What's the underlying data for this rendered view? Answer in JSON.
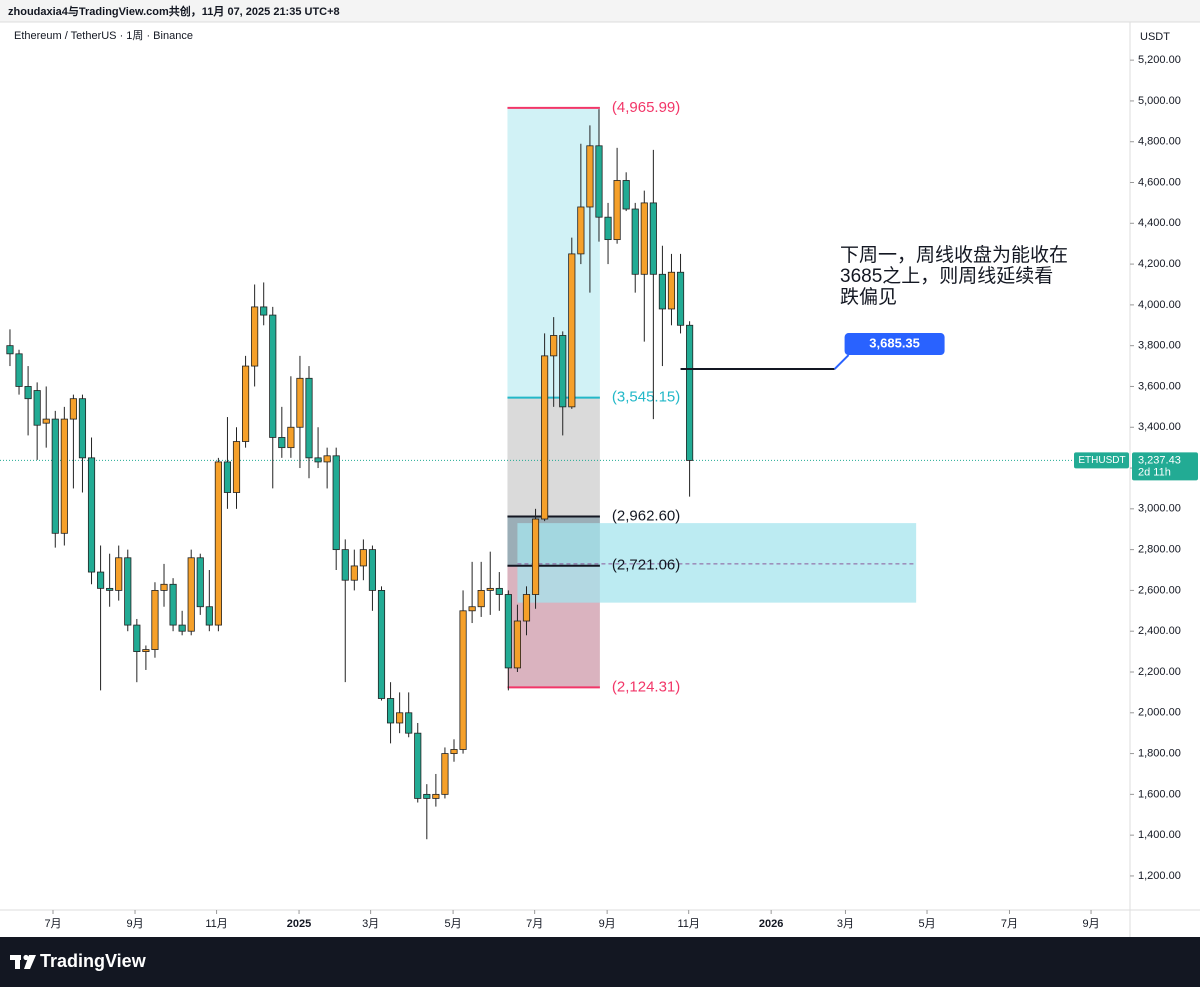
{
  "header": "zhoudaxia4与TradingView.com共创，11月 07, 2025 21:35 UTC+8",
  "footer": "TradingView",
  "chart_data": {
    "type": "candlestick",
    "title": "Ethereum / TetherUS · 1周 · Binance",
    "y_axis_label": "USDT",
    "up_color": "#f5a02a",
    "down_color": "#22ab94",
    "grid": false,
    "x": [
      0,
      1,
      2,
      3,
      4,
      5,
      6,
      7,
      8,
      9,
      10,
      11,
      12,
      13,
      14,
      15,
      16,
      17,
      18,
      19,
      20,
      21,
      22,
      23,
      24,
      25,
      26,
      27,
      28,
      29,
      30,
      31,
      32,
      33,
      34,
      35,
      36,
      37,
      38,
      39,
      40,
      41,
      42,
      43,
      44,
      45,
      46,
      47,
      48,
      49,
      50,
      51,
      52,
      53,
      54,
      55,
      56,
      57,
      58,
      59,
      60,
      61,
      62,
      63,
      64,
      65,
      66,
      67,
      68,
      69,
      70,
      71,
      72,
      73,
      74,
      75
    ],
    "open": [
      3800,
      3760,
      3600,
      3580,
      3420,
      3440,
      2880,
      3440,
      3540,
      3250,
      2690,
      2610,
      2600,
      2760,
      2430,
      2300,
      2310,
      2600,
      2630,
      2430,
      2400,
      2760,
      2520,
      2430,
      3230,
      3080,
      3330,
      3700,
      3990,
      3950,
      3350,
      3300,
      3400,
      3640,
      3250,
      3230,
      3260,
      2800,
      2650,
      2720,
      2800,
      2600,
      2070,
      1950,
      2000,
      1900,
      1600,
      1580,
      1600,
      1800,
      1820,
      2500,
      2520,
      2600,
      2610,
      2580,
      2220,
      2450,
      2580,
      2950,
      3750,
      3850,
      3500,
      4250,
      4480,
      4780,
      4430,
      4320,
      4610,
      4470,
      4150,
      4500,
      4150,
      3980,
      4160,
      3900
    ],
    "high": [
      3880,
      3780,
      3700,
      3620,
      3600,
      3480,
      3500,
      3560,
      3560,
      3350,
      2820,
      2780,
      2820,
      2800,
      2460,
      2330,
      2640,
      2730,
      2660,
      2500,
      2800,
      2780,
      2700,
      3250,
      3450,
      3400,
      3750,
      4100,
      4110,
      3990,
      3500,
      3650,
      3750,
      3700,
      3400,
      3300,
      3300,
      2850,
      2800,
      2850,
      2820,
      2620,
      2150,
      2100,
      2100,
      1950,
      1650,
      1700,
      1830,
      1870,
      2600,
      2740,
      2740,
      2790,
      2690,
      2600,
      2530,
      2620,
      3000,
      3860,
      3940,
      3870,
      4330,
      4790,
      4880,
      4960,
      4500,
      4770,
      4650,
      4500,
      4560,
      4760,
      4290,
      4250,
      4250,
      3920
    ],
    "low": [
      3700,
      3560,
      3360,
      3240,
      3300,
      2810,
      2820,
      3100,
      3080,
      2630,
      2110,
      2520,
      2550,
      2400,
      2150,
      2210,
      2270,
      2520,
      2400,
      2380,
      2380,
      2480,
      2400,
      2400,
      3000,
      3000,
      3300,
      3600,
      3900,
      3100,
      3250,
      3250,
      3200,
      3150,
      3200,
      3100,
      2700,
      2150,
      2600,
      2650,
      2500,
      2060,
      1850,
      1900,
      1880,
      1560,
      1380,
      1540,
      1580,
      1760,
      1800,
      2440,
      2470,
      2480,
      2500,
      2110,
      2200,
      2380,
      2510,
      2940,
      3500,
      3360,
      3490,
      4200,
      4060,
      4310,
      4200,
      4300,
      4460,
      4060,
      3820,
      3440,
      3700,
      3900,
      3860,
      3060
    ],
    "close": [
      3760,
      3600,
      3540,
      3410,
      3440,
      2880,
      3440,
      3540,
      3250,
      2690,
      2610,
      2600,
      2760,
      2430,
      2300,
      2310,
      2600,
      2630,
      2430,
      2400,
      2760,
      2520,
      2430,
      3230,
      3080,
      3330,
      3700,
      3990,
      3950,
      3350,
      3300,
      3400,
      3640,
      3250,
      3230,
      3260,
      2800,
      2650,
      2720,
      2800,
      2600,
      2070,
      1950,
      2000,
      1900,
      1580,
      1580,
      1600,
      1800,
      1820,
      2500,
      2520,
      2600,
      2610,
      2580,
      2220,
      2450,
      2580,
      2950,
      3750,
      3850,
      3500,
      4250,
      4480,
      4780,
      4430,
      4320,
      4610,
      4470,
      4150,
      4500,
      4150,
      3980,
      4160,
      3900,
      3237.43
    ],
    "xlim": [
      -1.1,
      123.6
    ],
    "xticks": [
      {
        "value": 4.75,
        "label": "7月"
      },
      {
        "value": 13.8,
        "label": "9月"
      },
      {
        "value": 22.8,
        "label": "11月"
      },
      {
        "value": 31.9,
        "label": "2025"
      },
      {
        "value": 39.8,
        "label": "3月"
      },
      {
        "value": 48.9,
        "label": "5月"
      },
      {
        "value": 57.9,
        "label": "7月"
      },
      {
        "value": 65.9,
        "label": "9月"
      },
      {
        "value": 74.9,
        "label": "11月"
      },
      {
        "value": 84,
        "label": "2026"
      },
      {
        "value": 92.2,
        "label": "3月"
      },
      {
        "value": 101.2,
        "label": "5月"
      },
      {
        "value": 110.3,
        "label": "7月"
      },
      {
        "value": 119.3,
        "label": "9月"
      }
    ],
    "ylim": [
      1033,
      5387
    ],
    "yticks": [
      {
        "value": 1200,
        "label": "1,200.00"
      },
      {
        "value": 1400,
        "label": "1,400.00"
      },
      {
        "value": 1600,
        "label": "1,600.00"
      },
      {
        "value": 1800,
        "label": "1,800.00"
      },
      {
        "value": 2000,
        "label": "2,000.00"
      },
      {
        "value": 2200,
        "label": "2,200.00"
      },
      {
        "value": 2400,
        "label": "2,400.00"
      },
      {
        "value": 2600,
        "label": "2,600.00"
      },
      {
        "value": 2800,
        "label": "2,800.00"
      },
      {
        "value": 3000,
        "label": "3,000.00"
      },
      {
        "value": 3200,
        "label": "3,200.00"
      },
      {
        "value": 3400,
        "label": "3,400.00"
      },
      {
        "value": 3600,
        "label": "3,600.00"
      },
      {
        "value": 3800,
        "label": "3,800.00"
      },
      {
        "value": 4000,
        "label": "4,000.00"
      },
      {
        "value": 4200,
        "label": "4,200.00"
      },
      {
        "value": 4400,
        "label": "4,400.00"
      },
      {
        "value": 4600,
        "label": "4,600.00"
      },
      {
        "value": 4800,
        "label": "4,800.00"
      },
      {
        "value": 5000,
        "label": "5,000.00"
      },
      {
        "value": 5200,
        "label": "5,200.00"
      }
    ],
    "fib": {
      "x_range": [
        54.9,
        65.1
      ],
      "levels": [
        {
          "value": 4965.99,
          "label": "(4,965.99)",
          "color": "#f23668"
        },
        {
          "value": 3545.15,
          "label": "(3,545.15)",
          "color": "#22b8c8"
        },
        {
          "value": 2962.6,
          "label": "(2,962.60)",
          "color": "#131722"
        },
        {
          "value": 2721.06,
          "label": "(2,721.06)",
          "color": "#131722"
        },
        {
          "value": 2124.31,
          "label": "(2,124.31)",
          "color": "#f23668"
        }
      ],
      "fills": [
        "#c9f0f4",
        "#d4d4d4",
        "#8aa0aa",
        "#d3a6b4"
      ]
    },
    "zone": {
      "top": 2930,
      "bottom": 2540,
      "mid": 2730,
      "x_range": [
        56,
        100
      ],
      "color": "#a5e4ee"
    },
    "hline": {
      "value": 3685.35,
      "label": "3,685.35",
      "x_range": [
        74,
        91
      ],
      "color": "#2962ff"
    },
    "last": {
      "value": 3237.43,
      "label": "3,237.43",
      "symbol": "ETHUSDT",
      "countdown": "2d 11h"
    },
    "note": [
      "下周一，周线收盘为能收在",
      "3685之上，则周线延续看",
      "跌偏见"
    ]
  }
}
